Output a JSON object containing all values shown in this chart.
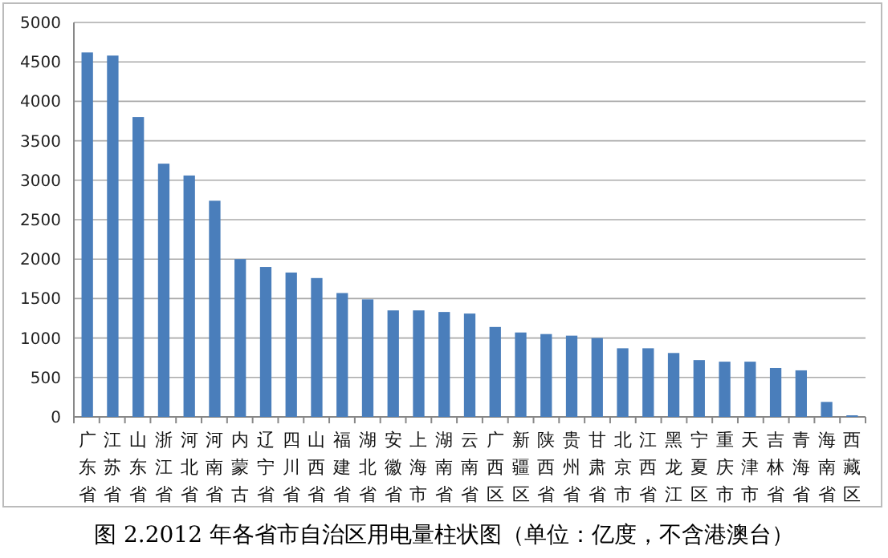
{
  "chart_data": {
    "type": "bar",
    "title": "图 2.2012 年各省市自治区用电量柱状图（单位：亿度，不含港澳台）",
    "categories": [
      "广东省",
      "江苏省",
      "山东省",
      "浙江省",
      "河北省",
      "河南省",
      "内蒙古",
      "辽宁省",
      "四川省",
      "山西省",
      "福建省",
      "湖北省",
      "安徽省",
      "上海市",
      "湖南省",
      "云南省",
      "广西区",
      "新疆区",
      "陕西省",
      "贵州省",
      "甘肃省",
      "北京市",
      "江西省",
      "黑龙江",
      "宁夏区",
      "重庆市",
      "天津市",
      "吉林省",
      "青海省",
      "海南省",
      "西藏区"
    ],
    "values": [
      4620,
      4580,
      3800,
      3210,
      3060,
      2740,
      2000,
      1900,
      1830,
      1760,
      1570,
      1490,
      1350,
      1350,
      1330,
      1310,
      1140,
      1070,
      1050,
      1030,
      1000,
      870,
      870,
      810,
      720,
      700,
      700,
      620,
      590,
      190,
      20
    ],
    "color": "#4a7ebb",
    "ylim": [
      0,
      5000
    ],
    "yticks": [
      0,
      500,
      1000,
      1500,
      2000,
      2500,
      3000,
      3500,
      4000,
      4500,
      5000
    ],
    "grid": "y"
  }
}
